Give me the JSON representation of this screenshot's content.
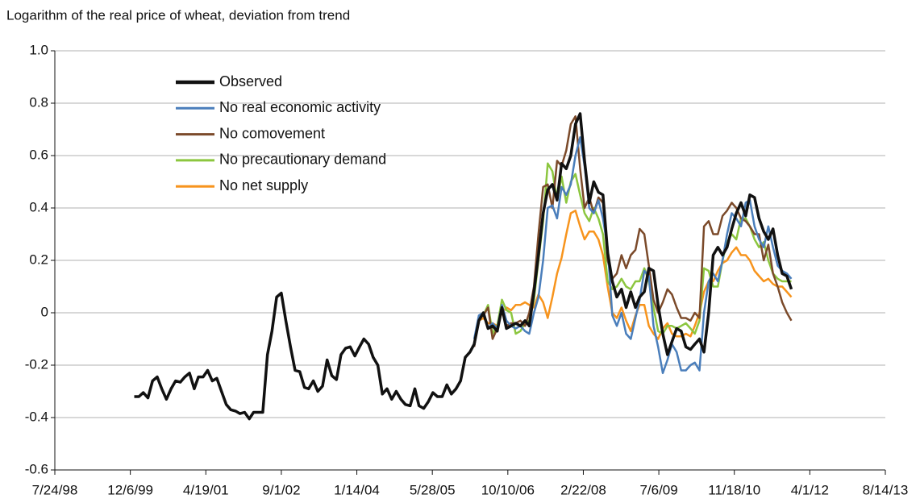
{
  "chart_data": {
    "type": "line",
    "title": "Logarithm of the real price of wheat, deviation from trend",
    "x": [
      36526,
      36557,
      36586,
      36617,
      36647,
      36678,
      36708,
      36739,
      36770,
      36800,
      36831,
      36861,
      36892,
      36923,
      36951,
      36982,
      37012,
      37043,
      37073,
      37104,
      37135,
      37165,
      37196,
      37226,
      37257,
      37288,
      37316,
      37347,
      37377,
      37408,
      37438,
      37469,
      37500,
      37530,
      37561,
      37591,
      37622,
      37653,
      37681,
      37712,
      37742,
      37773,
      37803,
      37834,
      37865,
      37895,
      37926,
      37956,
      37987,
      38018,
      38047,
      38078,
      38108,
      38139,
      38169,
      38200,
      38231,
      38261,
      38292,
      38322,
      38353,
      38384,
      38412,
      38443,
      38473,
      38504,
      38534,
      38565,
      38596,
      38626,
      38657,
      38687,
      38718,
      38749,
      38777,
      38808,
      38838,
      38869,
      38899,
      38930,
      38961,
      38991,
      39022,
      39052,
      39083,
      39114,
      39142,
      39173,
      39203,
      39234,
      39264,
      39295,
      39326,
      39356,
      39387,
      39417,
      39448,
      39479,
      39508,
      39539,
      39569,
      39600,
      39630,
      39661,
      39692,
      39722,
      39753,
      39783,
      39814,
      39845,
      39873,
      39904,
      39934,
      39965,
      39995,
      40026,
      40057,
      40087,
      40118,
      40148,
      40179,
      40210,
      40238,
      40269,
      40299,
      40330,
      40360,
      40391,
      40422,
      40452,
      40483,
      40513,
      40544,
      40575,
      40603,
      40634,
      40664,
      40695,
      40725,
      40756,
      40787,
      40817,
      40848,
      40878
    ],
    "series": [
      {
        "name": "Observed",
        "color": "#111111",
        "values": [
          -0.32,
          -0.32,
          -0.305,
          -0.325,
          -0.26,
          -0.245,
          -0.29,
          -0.33,
          -0.29,
          -0.26,
          -0.265,
          -0.245,
          -0.23,
          -0.29,
          -0.245,
          -0.245,
          -0.22,
          -0.26,
          -0.25,
          -0.3,
          -0.35,
          -0.37,
          -0.375,
          -0.385,
          -0.38,
          -0.405,
          -0.38,
          -0.38,
          -0.38,
          -0.16,
          -0.07,
          0.06,
          0.075,
          -0.03,
          -0.13,
          -0.22,
          -0.225,
          -0.285,
          -0.29,
          -0.26,
          -0.3,
          -0.28,
          -0.18,
          -0.24,
          -0.255,
          -0.16,
          -0.135,
          -0.13,
          -0.165,
          -0.13,
          -0.1,
          -0.12,
          -0.17,
          -0.2,
          -0.31,
          -0.29,
          -0.33,
          -0.3,
          -0.33,
          -0.35,
          -0.355,
          -0.29,
          -0.355,
          -0.365,
          -0.34,
          -0.305,
          -0.32,
          -0.32,
          -0.275,
          -0.31,
          -0.29,
          -0.26,
          -0.17,
          -0.15,
          -0.12,
          -0.03,
          0.0,
          -0.06,
          -0.05,
          -0.07,
          0.02,
          -0.06,
          -0.05,
          -0.04,
          -0.05,
          -0.03,
          -0.05,
          0.08,
          0.22,
          0.38,
          0.47,
          0.49,
          0.43,
          0.57,
          0.55,
          0.6,
          0.72,
          0.76,
          0.58,
          0.42,
          0.5,
          0.46,
          0.45,
          0.23,
          0.12,
          0.06,
          0.09,
          0.02,
          0.08,
          0.02,
          0.06,
          0.08,
          0.17,
          0.16,
          0.03,
          -0.08,
          -0.16,
          -0.11,
          -0.06,
          -0.07,
          -0.13,
          -0.14,
          -0.12,
          -0.1,
          -0.15,
          0.0,
          0.22,
          0.25,
          0.22,
          0.25,
          0.32,
          0.38,
          0.42,
          0.37,
          0.45,
          0.44,
          0.36,
          0.31,
          0.28,
          0.32,
          0.22,
          0.15,
          0.14,
          0.09
        ]
      },
      {
        "name": "No real economic activity",
        "color": "#4a7ebb",
        "values": [
          null,
          null,
          null,
          null,
          null,
          null,
          null,
          null,
          null,
          null,
          null,
          null,
          null,
          null,
          null,
          null,
          null,
          null,
          null,
          null,
          null,
          null,
          null,
          null,
          null,
          null,
          null,
          null,
          null,
          null,
          null,
          null,
          null,
          null,
          null,
          null,
          null,
          null,
          null,
          null,
          null,
          null,
          null,
          null,
          null,
          null,
          null,
          null,
          null,
          null,
          null,
          null,
          null,
          null,
          null,
          null,
          null,
          null,
          null,
          null,
          null,
          null,
          null,
          null,
          null,
          null,
          null,
          null,
          null,
          null,
          null,
          null,
          null,
          null,
          -0.1,
          -0.01,
          0.0,
          -0.06,
          -0.04,
          -0.06,
          0.03,
          -0.03,
          -0.05,
          -0.06,
          -0.05,
          -0.07,
          -0.08,
          0.0,
          0.06,
          0.2,
          0.4,
          0.41,
          0.36,
          0.48,
          0.45,
          0.49,
          0.6,
          0.67,
          0.56,
          0.4,
          0.38,
          0.43,
          0.36,
          0.25,
          -0.01,
          -0.05,
          0.0,
          -0.08,
          -0.1,
          -0.02,
          0.05,
          0.16,
          0.14,
          -0.05,
          -0.13,
          -0.23,
          -0.18,
          -0.12,
          -0.15,
          -0.22,
          -0.22,
          -0.2,
          -0.19,
          -0.22,
          0.0,
          0.12,
          0.15,
          0.12,
          0.2,
          0.3,
          0.38,
          0.36,
          0.33,
          0.42,
          0.43,
          0.33,
          0.28,
          0.25,
          0.33,
          0.25,
          0.18,
          0.16,
          0.15,
          0.13
        ]
      },
      {
        "name": "No comovement",
        "color": "#7b4a2a",
        "values": [
          null,
          null,
          null,
          null,
          null,
          null,
          null,
          null,
          null,
          null,
          null,
          null,
          null,
          null,
          null,
          null,
          null,
          null,
          null,
          null,
          null,
          null,
          null,
          null,
          null,
          null,
          null,
          null,
          null,
          null,
          null,
          null,
          null,
          null,
          null,
          null,
          null,
          null,
          null,
          null,
          null,
          null,
          null,
          null,
          null,
          null,
          null,
          null,
          null,
          null,
          null,
          null,
          null,
          null,
          null,
          null,
          null,
          null,
          null,
          null,
          null,
          null,
          null,
          null,
          null,
          null,
          null,
          null,
          null,
          null,
          null,
          null,
          null,
          null,
          -0.13,
          -0.02,
          -0.01,
          0.02,
          -0.1,
          -0.06,
          0.02,
          -0.05,
          -0.04,
          -0.04,
          -0.03,
          -0.05,
          0.0,
          0.1,
          0.3,
          0.48,
          0.49,
          0.4,
          0.58,
          0.56,
          0.62,
          0.72,
          0.75,
          0.55,
          0.4,
          0.44,
          0.38,
          0.44,
          0.42,
          0.2,
          0.13,
          0.15,
          0.22,
          0.17,
          0.22,
          0.24,
          0.32,
          0.3,
          0.18,
          0.05,
          0.0,
          0.04,
          0.09,
          0.07,
          0.02,
          -0.02,
          -0.02,
          -0.03,
          0.0,
          -0.02,
          0.33,
          0.35,
          0.3,
          0.3,
          0.37,
          0.39,
          0.42,
          0.4,
          0.36,
          0.35,
          0.33,
          0.3,
          0.3,
          0.2,
          0.26,
          0.15,
          0.1,
          0.04,
          0.0,
          -0.03
        ]
      },
      {
        "name": "No precautionary demand",
        "color": "#8cc63f",
        "values": [
          null,
          null,
          null,
          null,
          null,
          null,
          null,
          null,
          null,
          null,
          null,
          null,
          null,
          null,
          null,
          null,
          null,
          null,
          null,
          null,
          null,
          null,
          null,
          null,
          null,
          null,
          null,
          null,
          null,
          null,
          null,
          null,
          null,
          null,
          null,
          null,
          null,
          null,
          null,
          null,
          null,
          null,
          null,
          null,
          null,
          null,
          null,
          null,
          null,
          null,
          null,
          null,
          null,
          null,
          null,
          null,
          null,
          null,
          null,
          null,
          null,
          null,
          null,
          null,
          null,
          null,
          null,
          null,
          null,
          null,
          null,
          null,
          null,
          null,
          -0.12,
          -0.02,
          -0.01,
          0.03,
          -0.08,
          -0.05,
          0.05,
          0.01,
          0.0,
          -0.08,
          -0.07,
          -0.04,
          -0.03,
          0.05,
          0.2,
          0.35,
          0.57,
          0.54,
          0.43,
          0.52,
          0.42,
          0.5,
          0.53,
          0.45,
          0.38,
          0.35,
          0.4,
          0.36,
          0.3,
          0.12,
          0.09,
          0.1,
          0.13,
          0.1,
          0.09,
          0.12,
          0.12,
          0.17,
          0.12,
          0.02,
          -0.07,
          -0.08,
          -0.05,
          -0.05,
          -0.06,
          -0.05,
          -0.04,
          -0.06,
          -0.08,
          -0.03,
          0.17,
          0.16,
          0.1,
          0.1,
          0.2,
          0.27,
          0.3,
          0.28,
          0.36,
          0.36,
          0.33,
          0.28,
          0.25,
          0.27,
          0.2,
          0.15,
          0.13,
          0.12,
          0.12,
          0.12
        ]
      },
      {
        "name": "No net supply",
        "color": "#f7941d",
        "values": [
          null,
          null,
          null,
          null,
          null,
          null,
          null,
          null,
          null,
          null,
          null,
          null,
          null,
          null,
          null,
          null,
          null,
          null,
          null,
          null,
          null,
          null,
          null,
          null,
          null,
          null,
          null,
          null,
          null,
          null,
          null,
          null,
          null,
          null,
          null,
          null,
          null,
          null,
          null,
          null,
          null,
          null,
          null,
          null,
          null,
          null,
          null,
          null,
          null,
          null,
          null,
          null,
          null,
          null,
          null,
          null,
          null,
          null,
          null,
          null,
          null,
          null,
          null,
          null,
          null,
          null,
          null,
          null,
          null,
          null,
          null,
          null,
          null,
          null,
          -0.12,
          -0.03,
          -0.02,
          -0.04,
          -0.04,
          -0.05,
          0.0,
          0.02,
          0.01,
          0.03,
          0.03,
          0.04,
          0.03,
          0.02,
          0.07,
          0.04,
          -0.02,
          0.06,
          0.15,
          0.21,
          0.3,
          0.38,
          0.39,
          0.33,
          0.28,
          0.31,
          0.31,
          0.28,
          0.22,
          0.1,
          0.0,
          -0.02,
          0.02,
          -0.03,
          -0.07,
          -0.01,
          0.03,
          0.03,
          -0.05,
          -0.08,
          -0.1,
          -0.06,
          -0.04,
          -0.08,
          -0.09,
          -0.09,
          -0.08,
          -0.09,
          -0.05,
          0.0,
          0.08,
          0.12,
          0.12,
          0.16,
          0.19,
          0.2,
          0.23,
          0.25,
          0.22,
          0.22,
          0.2,
          0.16,
          0.14,
          0.12,
          0.13,
          0.11,
          0.1,
          0.1,
          0.08,
          0.06
        ]
      }
    ],
    "xlim": [
      36000,
      41500
    ],
    "xticks": [
      {
        "value": 36000,
        "label": "7/24/98"
      },
      {
        "value": 36500,
        "label": "12/6/99"
      },
      {
        "value": 37000,
        "label": "4/19/01"
      },
      {
        "value": 37500,
        "label": "9/1/02"
      },
      {
        "value": 38000,
        "label": "1/14/04"
      },
      {
        "value": 38500,
        "label": "5/28/05"
      },
      {
        "value": 39000,
        "label": "10/10/06"
      },
      {
        "value": 39500,
        "label": "2/22/08"
      },
      {
        "value": 40000,
        "label": "7/6/09"
      },
      {
        "value": 40500,
        "label": "11/18/10"
      },
      {
        "value": 41000,
        "label": "4/1/12"
      },
      {
        "value": 41500,
        "label": "8/14/13"
      }
    ],
    "ylim": [
      -0.6,
      1
    ],
    "yticks": [
      -0.6,
      -0.4,
      -0.2,
      0,
      0.2,
      0.4,
      0.6,
      0.8,
      {
        "value": 1,
        "label": "1.0"
      }
    ],
    "grid": true,
    "legend": "upper-left"
  }
}
